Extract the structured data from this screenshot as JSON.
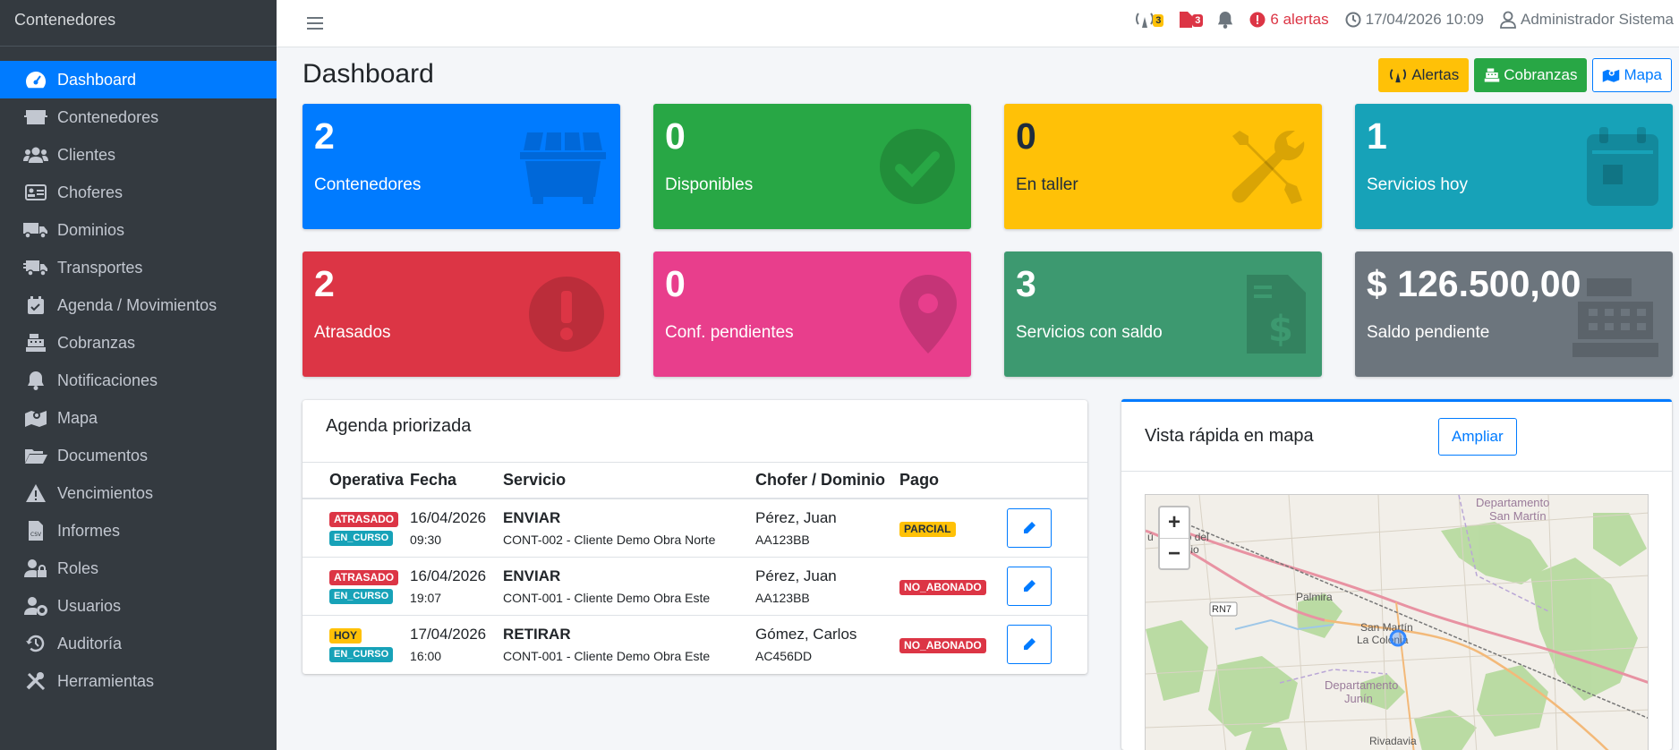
{
  "brand": "Contenedores",
  "sidebar": {
    "items": [
      {
        "label": "Dashboard",
        "icon": "gauge-icon",
        "active": true
      },
      {
        "label": "Contenedores",
        "icon": "dumpster-icon"
      },
      {
        "label": "Clientes",
        "icon": "users-icon"
      },
      {
        "label": "Choferes",
        "icon": "id-card-icon"
      },
      {
        "label": "Dominios",
        "icon": "truck-icon"
      },
      {
        "label": "Transportes",
        "icon": "truck-moving-icon"
      },
      {
        "label": "Agenda / Movimientos",
        "icon": "calendar-check-icon"
      },
      {
        "label": "Cobranzas",
        "icon": "cash-register-icon"
      },
      {
        "label": "Notificaciones",
        "icon": "bell-icon"
      },
      {
        "label": "Mapa",
        "icon": "map-icon"
      },
      {
        "label": "Documentos",
        "icon": "folder-open-icon"
      },
      {
        "label": "Vencimientos",
        "icon": "warning-icon"
      },
      {
        "label": "Informes",
        "icon": "file-csv-icon"
      },
      {
        "label": "Roles",
        "icon": "user-lock-icon"
      },
      {
        "label": "Usuarios",
        "icon": "user-cog-icon"
      },
      {
        "label": "Auditoría",
        "icon": "history-icon"
      },
      {
        "label": "Herramientas",
        "icon": "tools-icon"
      }
    ]
  },
  "topbar": {
    "tower_count": "3",
    "doc_count": "3",
    "alerts": "6 alertas",
    "datetime": "17/04/2026 10:09",
    "user": "Administrador Sistema"
  },
  "page": {
    "title": "Dashboard",
    "buttons": {
      "alertas": "Alertas",
      "cobranzas": "Cobranzas",
      "mapa": "Mapa"
    }
  },
  "stats": [
    {
      "value": "2",
      "label": "Contenedores",
      "color": "#007bff",
      "icon": "dumpster-icon"
    },
    {
      "value": "0",
      "label": "Disponibles",
      "color": "#28a745",
      "icon": "check-circle-icon"
    },
    {
      "value": "0",
      "label": "En taller",
      "color": "#ffc107",
      "icon": "tools-icon"
    },
    {
      "value": "1",
      "label": "Servicios hoy",
      "color": "#17a2b8",
      "icon": "calendar-icon"
    },
    {
      "value": "2",
      "label": "Atrasados",
      "color": "#dc3545",
      "icon": "exclamation-circle-icon"
    },
    {
      "value": "0",
      "label": "Conf. pendientes",
      "color": "#e83e8c",
      "icon": "map-marker-icon"
    },
    {
      "value": "3",
      "label": "Servicios con saldo",
      "color": "#3d9970",
      "icon": "file-invoice-dollar-icon"
    },
    {
      "value": "$ 126.500,00",
      "label": "Saldo pendiente",
      "color": "#6c757d",
      "icon": "cash-register-icon"
    }
  ],
  "agenda": {
    "title": "Agenda priorizada",
    "columns": [
      "Operativa",
      "Fecha",
      "Servicio",
      "Chofer / Dominio",
      "Pago"
    ],
    "rows": [
      {
        "badge1": "ATRASADO",
        "badge2": "EN_CURSO",
        "date": "16/04/2026",
        "time": "09:30",
        "service": "ENVIAR",
        "detail": "CONT-002 - Cliente Demo Obra Norte",
        "driver": "Pérez, Juan",
        "plate": "AA123BB",
        "pago": "PARCIAL"
      },
      {
        "badge1": "ATRASADO",
        "badge2": "EN_CURSO",
        "date": "16/04/2026",
        "time": "19:07",
        "service": "ENVIAR",
        "detail": "CONT-001 - Cliente Demo Obra Este",
        "driver": "Pérez, Juan",
        "plate": "AA123BB",
        "pago": "NO_ABONADO"
      },
      {
        "badge1": "HOY",
        "badge2": "EN_CURSO",
        "date": "17/04/2026",
        "time": "16:00",
        "service": "RETIRAR",
        "detail": "CONT-001 - Cliente Demo Obra Este",
        "driver": "Gómez, Carlos",
        "plate": "AC456DD",
        "pago": "NO_ABONADO"
      }
    ]
  },
  "map": {
    "title": "Vista rápida en mapa",
    "button": "Ampliar",
    "zoom_in": "+",
    "zoom_out": "−",
    "labels": {
      "dep_san_martin_1": "Departamento",
      "dep_san_martin_2": "San Martín",
      "rodeo_1": "Rodeo del",
      "rodeo_2": "Medio",
      "rodeo_u": "ú",
      "rn7": "RN7",
      "palmira": "Palmira",
      "san_martin": "San Martín",
      "la_colonia": "La Colonia",
      "dep_junin_1": "Departamento",
      "dep_junin_2": "Junín",
      "rivadavia": "Rivadavia"
    }
  }
}
